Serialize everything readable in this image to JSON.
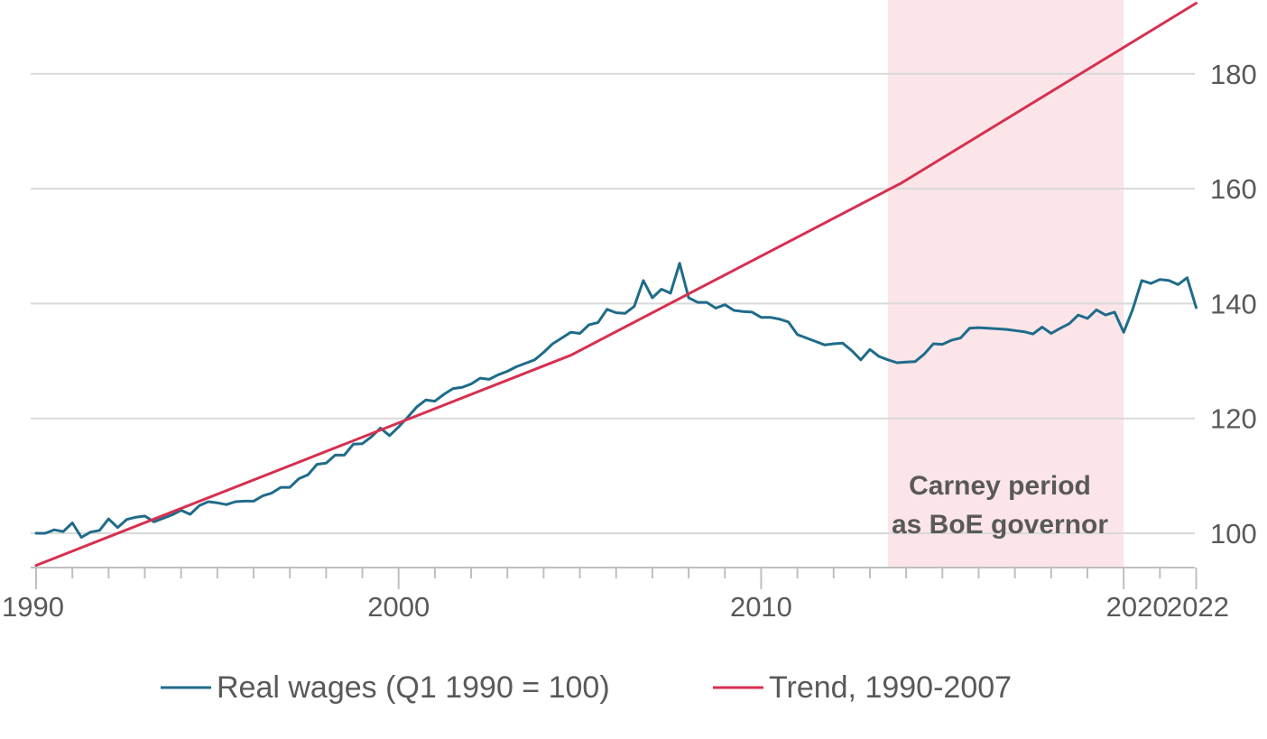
{
  "chart_data": {
    "type": "line",
    "title": "",
    "xlabel": "",
    "ylabel": "",
    "xlim": [
      1990,
      2022.25
    ],
    "ylim": [
      94.5,
      192
    ],
    "x_ticks": [
      1990,
      2000,
      2010,
      2020,
      2022
    ],
    "x_tick_labels": [
      "1990",
      "2000",
      "2010",
      "2020",
      "2022"
    ],
    "y_ticks": [
      100,
      120,
      140,
      160,
      180
    ],
    "y_tick_labels": [
      "100",
      "120",
      "140",
      "160",
      "180"
    ],
    "grid": "horizontal",
    "y_axis_side": "right",
    "legend_position": "bottom",
    "shaded_region": {
      "x_start": 2013.5,
      "x_end": 2020.0,
      "color": "#fbe5e8",
      "label_line1": "Carney period",
      "label_line2": "as BoE governor"
    },
    "series": [
      {
        "name": "Real wages (Q1 1990 = 100)",
        "color": "#1f6b8a",
        "points": [
          [
            1990.0,
            100.0
          ],
          [
            1990.25,
            100.0
          ],
          [
            1990.5,
            100.6
          ],
          [
            1990.75,
            100.3
          ],
          [
            1991.0,
            101.8
          ],
          [
            1991.25,
            99.3
          ],
          [
            1991.5,
            100.2
          ],
          [
            1991.75,
            100.5
          ],
          [
            1992.0,
            102.5
          ],
          [
            1992.25,
            101.0
          ],
          [
            1992.5,
            102.4
          ],
          [
            1992.75,
            102.8
          ],
          [
            1993.0,
            103.0
          ],
          [
            1993.25,
            102.0
          ],
          [
            1993.5,
            102.6
          ],
          [
            1993.75,
            103.2
          ],
          [
            1994.0,
            104.0
          ],
          [
            1994.25,
            103.3
          ],
          [
            1994.5,
            104.8
          ],
          [
            1994.75,
            105.5
          ],
          [
            1995.0,
            105.3
          ],
          [
            1995.25,
            105.0
          ],
          [
            1995.5,
            105.5
          ],
          [
            1995.75,
            105.6
          ],
          [
            1996.0,
            105.6
          ],
          [
            1996.25,
            106.5
          ],
          [
            1996.5,
            107.0
          ],
          [
            1996.75,
            108.0
          ],
          [
            1997.0,
            108.0
          ],
          [
            1997.25,
            109.5
          ],
          [
            1997.5,
            110.2
          ],
          [
            1997.75,
            112.0
          ],
          [
            1998.0,
            112.2
          ],
          [
            1998.25,
            113.6
          ],
          [
            1998.5,
            113.6
          ],
          [
            1998.75,
            115.5
          ],
          [
            1999.0,
            115.6
          ],
          [
            1999.25,
            116.8
          ],
          [
            1999.5,
            118.3
          ],
          [
            1999.75,
            117.0
          ],
          [
            2000.0,
            118.5
          ],
          [
            2000.25,
            120.2
          ],
          [
            2000.5,
            122.0
          ],
          [
            2000.75,
            123.2
          ],
          [
            2001.0,
            123.0
          ],
          [
            2001.25,
            124.2
          ],
          [
            2001.5,
            125.2
          ],
          [
            2001.75,
            125.4
          ],
          [
            2002.0,
            126.0
          ],
          [
            2002.25,
            127.0
          ],
          [
            2002.5,
            126.8
          ],
          [
            2002.75,
            127.6
          ],
          [
            2003.0,
            128.2
          ],
          [
            2003.25,
            129.0
          ],
          [
            2003.5,
            129.6
          ],
          [
            2003.75,
            130.2
          ],
          [
            2004.0,
            131.5
          ],
          [
            2004.25,
            133.0
          ],
          [
            2004.5,
            134.0
          ],
          [
            2004.75,
            135.0
          ],
          [
            2005.0,
            134.8
          ],
          [
            2005.25,
            136.3
          ],
          [
            2005.5,
            136.7
          ],
          [
            2005.75,
            139.0
          ],
          [
            2006.0,
            138.4
          ],
          [
            2006.25,
            138.3
          ],
          [
            2006.5,
            139.5
          ],
          [
            2006.75,
            144.0
          ],
          [
            2007.0,
            141.0
          ],
          [
            2007.25,
            142.5
          ],
          [
            2007.5,
            141.8
          ],
          [
            2007.75,
            147.0
          ],
          [
            2008.0,
            141.0
          ],
          [
            2008.25,
            140.2
          ],
          [
            2008.5,
            140.2
          ],
          [
            2008.75,
            139.2
          ],
          [
            2009.0,
            139.8
          ],
          [
            2009.25,
            138.8
          ],
          [
            2009.5,
            138.6
          ],
          [
            2009.75,
            138.5
          ],
          [
            2010.0,
            137.6
          ],
          [
            2010.25,
            137.6
          ],
          [
            2010.5,
            137.3
          ],
          [
            2010.75,
            136.8
          ],
          [
            2011.0,
            134.6
          ],
          [
            2011.25,
            134.0
          ],
          [
            2011.5,
            133.4
          ],
          [
            2011.75,
            132.8
          ],
          [
            2012.0,
            133.0
          ],
          [
            2012.25,
            133.1
          ],
          [
            2012.5,
            131.8
          ],
          [
            2012.75,
            130.2
          ],
          [
            2013.0,
            132.0
          ],
          [
            2013.25,
            130.8
          ],
          [
            2013.5,
            130.2
          ],
          [
            2013.75,
            129.7
          ],
          [
            2014.0,
            129.8
          ],
          [
            2014.25,
            129.9
          ],
          [
            2014.5,
            131.2
          ],
          [
            2014.75,
            133.0
          ],
          [
            2015.0,
            132.9
          ],
          [
            2015.25,
            133.6
          ],
          [
            2015.5,
            134.0
          ],
          [
            2015.75,
            135.7
          ],
          [
            2016.0,
            135.8
          ],
          [
            2016.25,
            135.7
          ],
          [
            2016.5,
            135.6
          ],
          [
            2016.75,
            135.5
          ],
          [
            2017.0,
            135.3
          ],
          [
            2017.25,
            135.1
          ],
          [
            2017.5,
            134.7
          ],
          [
            2017.75,
            135.9
          ],
          [
            2018.0,
            134.8
          ],
          [
            2018.25,
            135.7
          ],
          [
            2018.5,
            136.5
          ],
          [
            2018.75,
            138.0
          ],
          [
            2019.0,
            137.4
          ],
          [
            2019.25,
            138.9
          ],
          [
            2019.5,
            138.0
          ],
          [
            2019.75,
            138.5
          ],
          [
            2020.0,
            135.0
          ],
          [
            2020.25,
            139.0
          ],
          [
            2020.5,
            144.0
          ],
          [
            2020.75,
            143.5
          ],
          [
            2021.0,
            144.2
          ],
          [
            2021.25,
            144.0
          ],
          [
            2021.5,
            143.3
          ],
          [
            2021.75,
            144.5
          ],
          [
            2022.0,
            139.3
          ]
        ]
      },
      {
        "name": "Trend, 1990-2007",
        "color": "#d6304f",
        "points": [
          [
            1990.0,
            94.4
          ],
          [
            2004.75,
            131.0
          ],
          [
            2013.875,
            161.0
          ],
          [
            2022.0,
            192.3
          ]
        ]
      }
    ]
  }
}
